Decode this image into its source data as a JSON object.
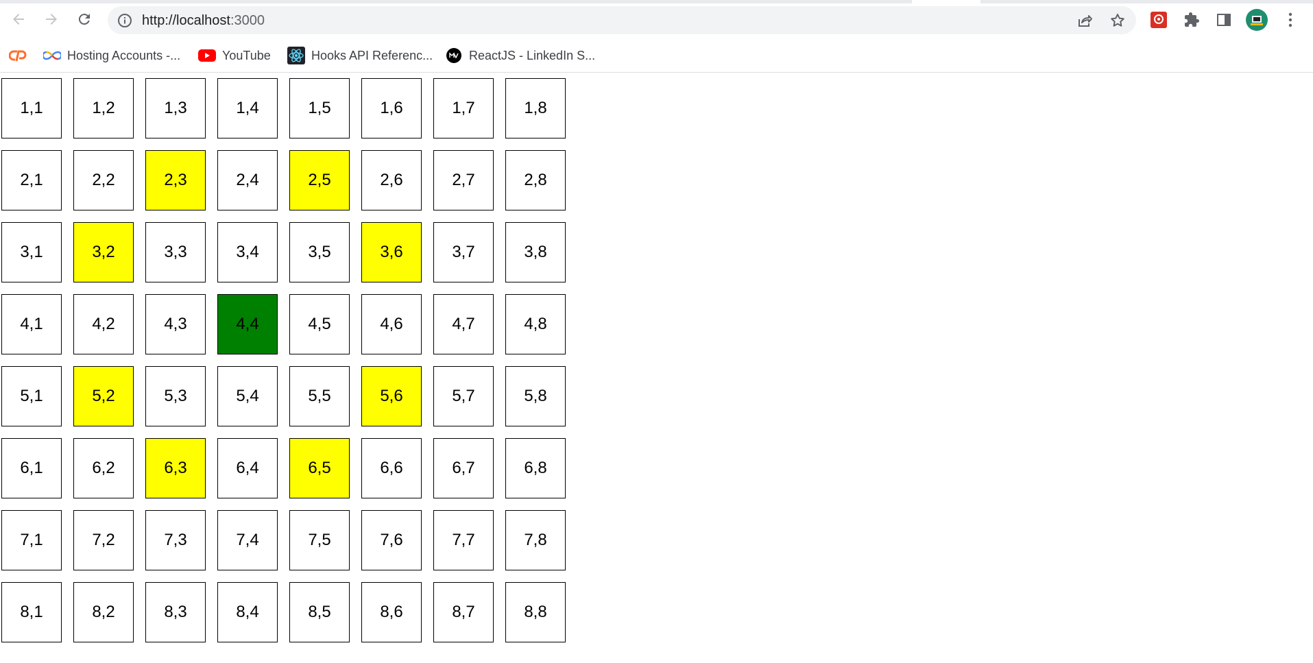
{
  "browser": {
    "url_host": "http://localhost",
    "url_port": ":3000",
    "nav_icons": [
      "back-arrow-icon",
      "forward-arrow-icon",
      "reload-icon"
    ],
    "omnibox_icons": [
      "site-info-icon",
      "share-icon",
      "bookmark-star-icon"
    ],
    "toolbar_icons": [
      "extension-app-icon",
      "extensions-puzzle-icon",
      "side-panel-icon",
      "profile-avatar",
      "menu-kebab-icon"
    ]
  },
  "bookmarks": [
    {
      "label": "",
      "icon": "cpanel-icon"
    },
    {
      "label": "Hosting Accounts -...",
      "icon": "infinity-icon"
    },
    {
      "label": "YouTube",
      "icon": "youtube-icon"
    },
    {
      "label": "Hooks API Referenc...",
      "icon": "react-icon"
    },
    {
      "label": "ReactJS - LinkedIn S...",
      "icon": "linkedin-skill-icon"
    }
  ],
  "colors": {
    "highlight": "#ffff00",
    "selected": "#008000",
    "cell_bg": "#ffffff",
    "cell_border": "#000000"
  },
  "board": {
    "rows": [
      [
        {
          "label": "1,1",
          "state": "empty"
        },
        {
          "label": "1,2",
          "state": "empty"
        },
        {
          "label": "1,3",
          "state": "empty"
        },
        {
          "label": "1,4",
          "state": "empty"
        },
        {
          "label": "1,5",
          "state": "empty"
        },
        {
          "label": "1,6",
          "state": "empty"
        },
        {
          "label": "1,7",
          "state": "empty"
        },
        {
          "label": "1,8",
          "state": "empty"
        }
      ],
      [
        {
          "label": "2,1",
          "state": "empty"
        },
        {
          "label": "2,2",
          "state": "empty"
        },
        {
          "label": "2,3",
          "state": "highlight"
        },
        {
          "label": "2,4",
          "state": "empty"
        },
        {
          "label": "2,5",
          "state": "highlight"
        },
        {
          "label": "2,6",
          "state": "empty"
        },
        {
          "label": "2,7",
          "state": "empty"
        },
        {
          "label": "2,8",
          "state": "empty"
        }
      ],
      [
        {
          "label": "3,1",
          "state": "empty"
        },
        {
          "label": "3,2",
          "state": "highlight"
        },
        {
          "label": "3,3",
          "state": "empty"
        },
        {
          "label": "3,4",
          "state": "empty"
        },
        {
          "label": "3,5",
          "state": "empty"
        },
        {
          "label": "3,6",
          "state": "highlight"
        },
        {
          "label": "3,7",
          "state": "empty"
        },
        {
          "label": "3,8",
          "state": "empty"
        }
      ],
      [
        {
          "label": "4,1",
          "state": "empty"
        },
        {
          "label": "4,2",
          "state": "empty"
        },
        {
          "label": "4,3",
          "state": "empty"
        },
        {
          "label": "4,4",
          "state": "selected"
        },
        {
          "label": "4,5",
          "state": "empty"
        },
        {
          "label": "4,6",
          "state": "empty"
        },
        {
          "label": "4,7",
          "state": "empty"
        },
        {
          "label": "4,8",
          "state": "empty"
        }
      ],
      [
        {
          "label": "5,1",
          "state": "empty"
        },
        {
          "label": "5,2",
          "state": "highlight"
        },
        {
          "label": "5,3",
          "state": "empty"
        },
        {
          "label": "5,4",
          "state": "empty"
        },
        {
          "label": "5,5",
          "state": "empty"
        },
        {
          "label": "5,6",
          "state": "highlight"
        },
        {
          "label": "5,7",
          "state": "empty"
        },
        {
          "label": "5,8",
          "state": "empty"
        }
      ],
      [
        {
          "label": "6,1",
          "state": "empty"
        },
        {
          "label": "6,2",
          "state": "empty"
        },
        {
          "label": "6,3",
          "state": "highlight"
        },
        {
          "label": "6,4",
          "state": "empty"
        },
        {
          "label": "6,5",
          "state": "highlight"
        },
        {
          "label": "6,6",
          "state": "empty"
        },
        {
          "label": "6,7",
          "state": "empty"
        },
        {
          "label": "6,8",
          "state": "empty"
        }
      ],
      [
        {
          "label": "7,1",
          "state": "empty"
        },
        {
          "label": "7,2",
          "state": "empty"
        },
        {
          "label": "7,3",
          "state": "empty"
        },
        {
          "label": "7,4",
          "state": "empty"
        },
        {
          "label": "7,5",
          "state": "empty"
        },
        {
          "label": "7,6",
          "state": "empty"
        },
        {
          "label": "7,7",
          "state": "empty"
        },
        {
          "label": "7,8",
          "state": "empty"
        }
      ],
      [
        {
          "label": "8,1",
          "state": "empty"
        },
        {
          "label": "8,2",
          "state": "empty"
        },
        {
          "label": "8,3",
          "state": "empty"
        },
        {
          "label": "8,4",
          "state": "empty"
        },
        {
          "label": "8,5",
          "state": "empty"
        },
        {
          "label": "8,6",
          "state": "empty"
        },
        {
          "label": "8,7",
          "state": "empty"
        },
        {
          "label": "8,8",
          "state": "empty"
        }
      ]
    ]
  }
}
